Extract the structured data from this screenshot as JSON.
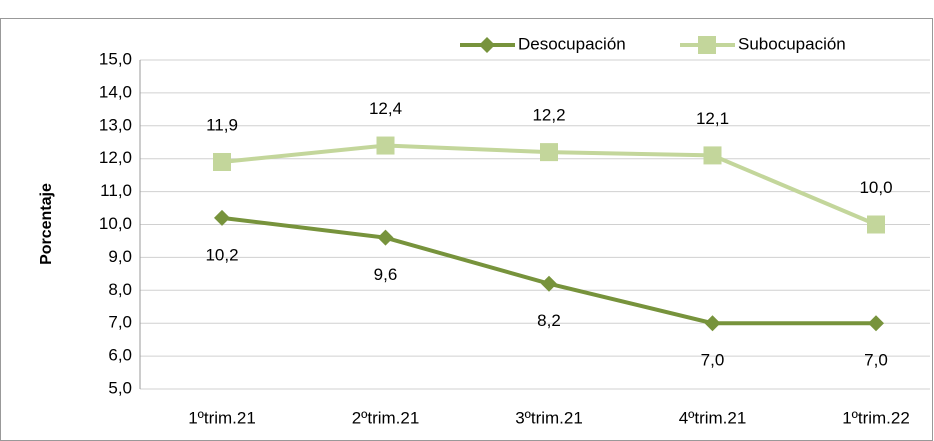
{
  "chart_data": {
    "type": "line",
    "y_label": "Porcentaje",
    "categories": [
      "1ºtrim.21",
      "2ºtrim.21",
      "3ºtrim.21",
      "4ºtrim.21",
      "1ºtrim.22"
    ],
    "series": [
      {
        "name": "Desocupación",
        "color": "#77933c",
        "marker": "diamond",
        "label_position": "below",
        "values": [
          10.2,
          9.6,
          8.2,
          7.0,
          7.0
        ],
        "value_labels": [
          "10,2",
          "9,6",
          "8,2",
          "7,0",
          "7,0"
        ]
      },
      {
        "name": "Subocupación",
        "color": "#c3d69b",
        "marker": "square",
        "label_position": "above",
        "values": [
          11.9,
          12.4,
          12.2,
          12.1,
          10.0
        ],
        "value_labels": [
          "11,9",
          "12,4",
          "12,2",
          "12,1",
          "10,0"
        ]
      }
    ],
    "ylim": [
      5,
      15
    ],
    "yticks": [
      {
        "value": 5,
        "label": "5,0"
      },
      {
        "value": 6,
        "label": "6,0"
      },
      {
        "value": 7,
        "label": "7,0"
      },
      {
        "value": 8,
        "label": "8,0"
      },
      {
        "value": 9,
        "label": "9,0"
      },
      {
        "value": 10,
        "label": "10,0"
      },
      {
        "value": 11,
        "label": "11,0"
      },
      {
        "value": 12,
        "label": "12,0"
      },
      {
        "value": 13,
        "label": "13,0"
      },
      {
        "value": 14,
        "label": "14,0"
      },
      {
        "value": 15,
        "label": "15,0"
      }
    ],
    "grid": true,
    "legend": "top"
  }
}
